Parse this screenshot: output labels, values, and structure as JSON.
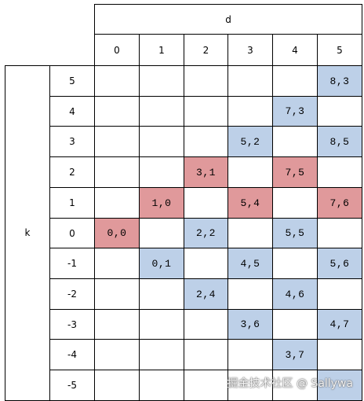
{
  "table": {
    "col_header": "d",
    "row_header": "k",
    "d_values": [
      "0",
      "1",
      "2",
      "3",
      "4",
      "5"
    ],
    "k_values": [
      "5",
      "4",
      "3",
      "2",
      "1",
      "0",
      "-1",
      "-2",
      "-3",
      "-4",
      "-5"
    ],
    "colors": {
      "blue": "#bdd0e8",
      "red": "#e0999b",
      "line": "#000000"
    },
    "cells": [
      {
        "d": "5",
        "k": "5",
        "text": "8,3",
        "color": "blue"
      },
      {
        "d": "4",
        "k": "4",
        "text": "7,3",
        "color": "blue"
      },
      {
        "d": "3",
        "k": "3",
        "text": "5,2",
        "color": "blue"
      },
      {
        "d": "5",
        "k": "3",
        "text": "8,5",
        "color": "blue"
      },
      {
        "d": "2",
        "k": "2",
        "text": "3,1",
        "color": "red"
      },
      {
        "d": "4",
        "k": "2",
        "text": "7,5",
        "color": "red"
      },
      {
        "d": "1",
        "k": "1",
        "text": "1,0",
        "color": "red"
      },
      {
        "d": "3",
        "k": "1",
        "text": "5,4",
        "color": "red"
      },
      {
        "d": "5",
        "k": "1",
        "text": "7,6",
        "color": "red"
      },
      {
        "d": "0",
        "k": "0",
        "text": "0,0",
        "color": "red"
      },
      {
        "d": "2",
        "k": "0",
        "text": "2,2",
        "color": "blue"
      },
      {
        "d": "4",
        "k": "0",
        "text": "5,5",
        "color": "blue"
      },
      {
        "d": "1",
        "k": "-1",
        "text": "0,1",
        "color": "blue"
      },
      {
        "d": "3",
        "k": "-1",
        "text": "4,5",
        "color": "blue"
      },
      {
        "d": "5",
        "k": "-1",
        "text": "5,6",
        "color": "blue"
      },
      {
        "d": "2",
        "k": "-2",
        "text": "2,4",
        "color": "blue"
      },
      {
        "d": "4",
        "k": "-2",
        "text": "4,6",
        "color": "blue"
      },
      {
        "d": "3",
        "k": "-3",
        "text": "3,6",
        "color": "blue"
      },
      {
        "d": "5",
        "k": "-3",
        "text": "4,7",
        "color": "blue"
      },
      {
        "d": "4",
        "k": "-4",
        "text": "3,7",
        "color": "blue"
      },
      {
        "d": "5",
        "k": "-5",
        "text": "",
        "color": "blue"
      }
    ]
  },
  "watermark": "掘金技术社区 @ Sallywa"
}
